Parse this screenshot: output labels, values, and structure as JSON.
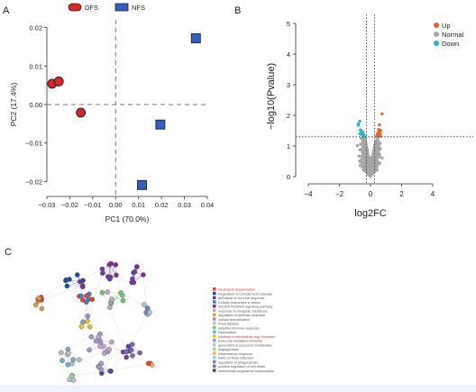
{
  "panels": {
    "a": {
      "letter": "A"
    },
    "b": {
      "letter": "B"
    },
    "c": {
      "letter": "C"
    }
  },
  "chart_data": [
    {
      "type": "scatter",
      "panel": "A",
      "xlabel": "PC1 (70.0%)",
      "ylabel": "PC2 (17.4%)",
      "xlim": [
        -0.03,
        0.04
      ],
      "ylim": [
        -0.022,
        0.022
      ],
      "xticks": [
        -0.03,
        -0.02,
        -0.01,
        0.0,
        0.01,
        0.02,
        0.03,
        0.04
      ],
      "xtick_labels": [
        "-0.03",
        "-0.02",
        "-0.01",
        "0.00",
        "0.01",
        "0.02",
        "0.03",
        "0.04"
      ],
      "yticks": [
        0.02,
        0.01,
        0.0,
        -0.01,
        -0.02
      ],
      "ytick_labels": [
        "0.02",
        "0.01",
        "0.00",
        "-0.01",
        "-0.02"
      ],
      "reference_lines": {
        "x": 0,
        "y": 0,
        "style": "dashed"
      },
      "legend": {
        "placement": "top"
      },
      "series": [
        {
          "name": "DFS",
          "marker": "circle",
          "color": "#d62728",
          "points": [
            [
              -0.0277,
              0.0054
            ],
            [
              -0.0248,
              0.006
            ],
            [
              -0.0152,
              -0.0021
            ]
          ]
        },
        {
          "name": "NFS",
          "marker": "square",
          "color": "#2f5fc4",
          "points": [
            [
              0.035,
              0.0172
            ],
            [
              0.0195,
              -0.0052
            ],
            [
              0.0115,
              -0.0209
            ]
          ]
        }
      ]
    },
    {
      "type": "scatter",
      "panel": "B",
      "xlabel": "log2FC",
      "ylabel": "−log10(Pvalue)",
      "xlim": [
        -4,
        4
      ],
      "ylim": [
        0,
        5
      ],
      "xticks": [
        -4,
        -2,
        0,
        2,
        4
      ],
      "xtick_labels": [
        "−4",
        "−2",
        "0",
        "2",
        "4"
      ],
      "yticks": [
        0,
        1,
        2,
        3,
        4,
        5
      ],
      "ytick_labels": [
        "0",
        "1",
        "2",
        "3",
        "4",
        "5"
      ],
      "threshold_lines": {
        "x": [
          -0.26,
          0.26
        ],
        "y": 1.3,
        "style": "dotted"
      },
      "legend": {
        "placement": "top-right"
      },
      "series": [
        {
          "name": "Up",
          "color": "#e8632b"
        },
        {
          "name": "Normal",
          "color": "#a6a6a6"
        },
        {
          "name": "Down",
          "color": "#2bb3c4"
        }
      ]
    },
    {
      "type": "network",
      "panel": "C",
      "legend": {
        "placement": "right",
        "entries": [
          {
            "label": "Neutrophil degranulation",
            "color": "#e34234",
            "label_color": "#c0392b"
          },
          {
            "label": "Regulation of Complement cascade",
            "color": "#1f4e9c",
            "label_color": "#555555"
          },
          {
            "label": "activation of immune response",
            "color": "#6a3d9a",
            "label_color": "#555555"
          },
          {
            "label": "Cellular responses to stress",
            "color": "#3a7ec6",
            "label_color": "#555555"
          },
          {
            "label": "VEGFA-VEGFR2 signaling pathway",
            "color": "#7b3294",
            "label_color": "#555555"
          },
          {
            "label": "response to inorganic substance",
            "color": "#c2a5cf",
            "label_color": "#555555"
          },
          {
            "label": "regulation of defense response",
            "color": "#d4a04c",
            "label_color": "#555555"
          },
          {
            "label": "cellular detoxification",
            "color": "#8c96c6",
            "label_color": "#555555"
          },
          {
            "label": "Prion disease",
            "color": "#bdbdbd",
            "label_color": "#555555"
          },
          {
            "label": "adaptive immune response",
            "color": "#74c476",
            "label_color": "#555555"
          },
          {
            "label": "Hemostasis",
            "color": "#6baed6",
            "label_color": "#555555"
          },
          {
            "label": "Neutrophil extracellular trap formation",
            "color": "#e6c229",
            "label_color": "#c0392b"
          },
          {
            "label": "leukocyte mediated immunity",
            "color": "#9e9ac8",
            "label_color": "#555555"
          },
          {
            "label": "generation of precursor metabolites",
            "color": "#bcbddc",
            "label_color": "#555555"
          },
          {
            "label": "angiogenesis",
            "color": "#a1d99b",
            "label_color": "#555555"
          },
          {
            "label": "inflammatory response",
            "color": "#fdae6b",
            "label_color": "#555555"
          },
          {
            "label": "RHO GTPase Effectors",
            "color": "#9ecae1",
            "label_color": "#555555"
          },
          {
            "label": "regulation of phagocytosis",
            "color": "#807dba",
            "label_color": "#555555"
          },
          {
            "label": "positive regulation of cell death",
            "color": "#756bb1",
            "label_color": "#555555"
          },
          {
            "label": "multicellular organismal homeostasis",
            "color": "#4a4a8a",
            "label_color": "#555555"
          }
        ]
      }
    }
  ]
}
